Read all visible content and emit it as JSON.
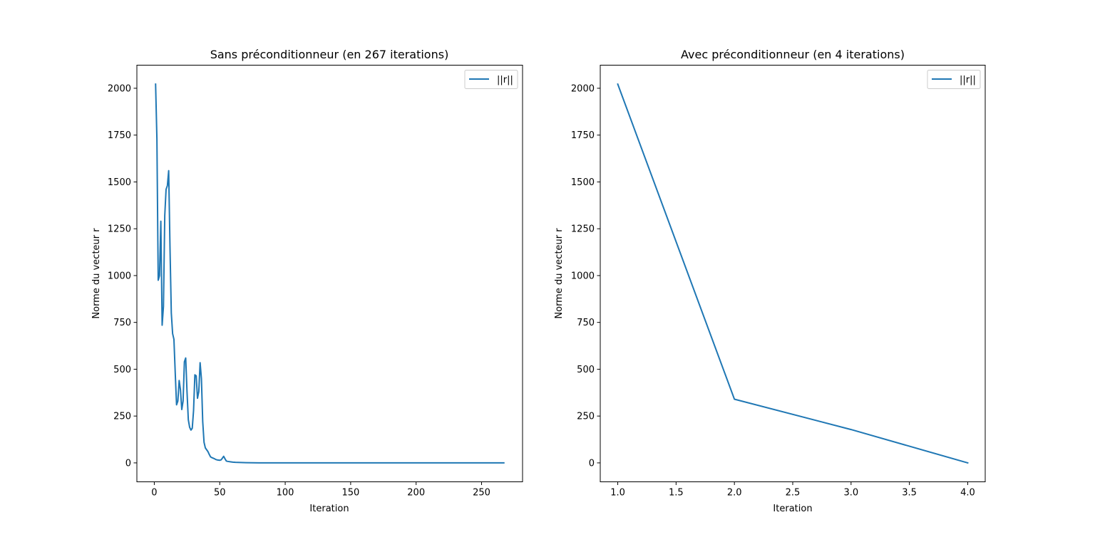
{
  "colors": {
    "series": "#1f77b4",
    "axes": "#000000",
    "background": "#ffffff",
    "legend_border": "#cccccc"
  },
  "chart_data": [
    {
      "type": "line",
      "title": "Sans préconditionneur (en 267 iterations)",
      "xlabel": "Iteration",
      "ylabel": "Norme du vecteur r",
      "xlim": [
        -13.3,
        281.3
      ],
      "ylim": [
        -101.1,
        2123.3
      ],
      "xticks": [
        0,
        50,
        100,
        150,
        200,
        250
      ],
      "xtick_labels": [
        "0",
        "50",
        "100",
        "150",
        "200",
        "250"
      ],
      "yticks": [
        0,
        250,
        500,
        750,
        1000,
        1250,
        1500,
        1750,
        2000
      ],
      "ytick_labels": [
        "0",
        "250",
        "500",
        "750",
        "1000",
        "1250",
        "1500",
        "1750",
        "2000"
      ],
      "grid": false,
      "legend": {
        "location": "upper right",
        "entries": [
          "||r||"
        ]
      },
      "series": [
        {
          "name": "||r||",
          "x": [
            1,
            2,
            3,
            4,
            5,
            6,
            7,
            8,
            9,
            10,
            11,
            12,
            13,
            14,
            15,
            16,
            17,
            18,
            19,
            20,
            21,
            22,
            23,
            24,
            25,
            26,
            27,
            28,
            29,
            30,
            31,
            32,
            33,
            34,
            35,
            36,
            37,
            38,
            39,
            40,
            41,
            42,
            43,
            44,
            45,
            46,
            47,
            48,
            49,
            50,
            51,
            52,
            53,
            54,
            55,
            56,
            57,
            58,
            59,
            60,
            62,
            64,
            66,
            68,
            70,
            75,
            80,
            90,
            100,
            120,
            150,
            200,
            250,
            267
          ],
          "y": [
            2022,
            1730,
            975,
            1000,
            1290,
            735,
            835,
            1320,
            1460,
            1480,
            1560,
            1150,
            800,
            690,
            660,
            480,
            310,
            330,
            440,
            390,
            285,
            330,
            540,
            560,
            380,
            230,
            190,
            175,
            185,
            280,
            470,
            465,
            345,
            380,
            535,
            450,
            220,
            110,
            80,
            70,
            60,
            45,
            32,
            28,
            25,
            22,
            18,
            16,
            15,
            14,
            16,
            25,
            35,
            22,
            10,
            8,
            7,
            6,
            5,
            4,
            3,
            2.5,
            2,
            1.5,
            1,
            0.5,
            0.3,
            0.2,
            0.1,
            0.05,
            0.02,
            0.01,
            0.005,
            0
          ]
        }
      ]
    },
    {
      "type": "line",
      "title": "Avec préconditionneur (en 4 iterations)",
      "xlabel": "Iteration",
      "ylabel": "Norme du vecteur r",
      "xlim": [
        0.85,
        4.15
      ],
      "ylim": [
        -101.1,
        2123.3
      ],
      "xticks": [
        1.0,
        1.5,
        2.0,
        2.5,
        3.0,
        3.5,
        4.0
      ],
      "xtick_labels": [
        "1.0",
        "1.5",
        "2.0",
        "2.5",
        "3.0",
        "3.5",
        "4.0"
      ],
      "yticks": [
        0,
        250,
        500,
        750,
        1000,
        1250,
        1500,
        1750,
        2000
      ],
      "ytick_labels": [
        "0",
        "250",
        "500",
        "750",
        "1000",
        "1250",
        "1500",
        "1750",
        "2000"
      ],
      "grid": false,
      "legend": {
        "location": "upper right",
        "entries": [
          "||r||"
        ]
      },
      "series": [
        {
          "name": "||r||",
          "x": [
            1,
            2,
            3,
            4
          ],
          "y": [
            2022,
            340,
            178,
            0
          ]
        }
      ]
    }
  ]
}
